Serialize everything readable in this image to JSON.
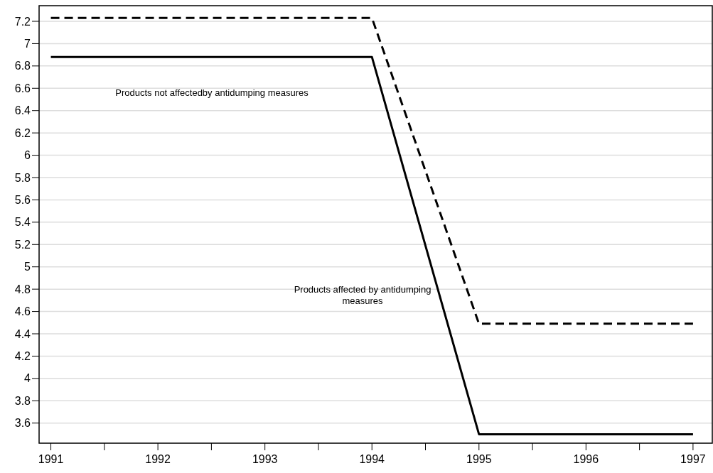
{
  "chart_data": {
    "type": "line",
    "x": [
      1991,
      1994,
      1995,
      1997
    ],
    "series": [
      {
        "color": "#000000",
        "line_style": "dashed",
        "values": [
          7.23,
          7.23,
          4.49,
          4.49
        ]
      },
      {
        "color": "#000000",
        "line_style": "solid",
        "values": [
          6.88,
          6.88,
          3.5,
          3.5
        ]
      }
    ],
    "xlim": [
      1990.89,
      1997.18
    ],
    "xticks": [
      1991,
      {
        "value": 1991.5,
        "label": null
      },
      1992,
      {
        "value": 1992.5,
        "label": null
      },
      1993,
      {
        "value": 1993.5,
        "label": null
      },
      1994,
      {
        "value": 1994.5,
        "label": null
      },
      1995,
      {
        "value": 1995.5,
        "label": null
      },
      1996,
      {
        "value": 1996.5,
        "label": null
      },
      1997
    ],
    "ylim": [
      3.42,
      7.34
    ],
    "yticks": [
      3.6,
      3.8,
      4,
      4.2,
      4.4,
      4.6,
      4.8,
      5,
      5.2,
      5.4,
      5.6,
      5.8,
      6,
      6.2,
      6.4,
      6.6,
      6.8,
      7,
      7.2
    ],
    "grid": "y",
    "annotations": [
      "Products not affectedby antidumping measures",
      "Products affected by antidumping\nmeasures"
    ]
  }
}
